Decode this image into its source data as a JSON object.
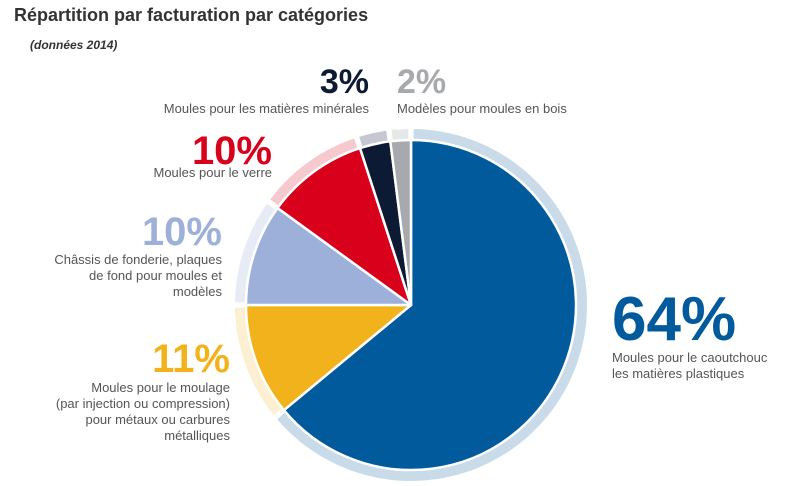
{
  "chart_data": {
    "type": "pie",
    "title": "Répartition par facturation par catégories",
    "subtitle": "(données 2014)",
    "slices": [
      {
        "percent_label": "64%",
        "value": 64,
        "color": "#005a9c",
        "ring_color": "#c9dbe9",
        "label_lines": [
          "Moules pour le caoutchouc",
          "les matières plastiques"
        ]
      },
      {
        "percent_label": "11%",
        "value": 11,
        "color": "#f2b21c",
        "ring_color": "#fcefd2",
        "label_lines": [
          "Moules pour le moulage",
          "(par injection ou compression)",
          "pour métaux ou carbures",
          "métalliques"
        ]
      },
      {
        "percent_label": "10%",
        "value": 10,
        "color": "#9cb0da",
        "ring_color": "#e6ebf5",
        "label_lines": [
          "Châssis de fonderie, plaques",
          "de fond pour moules et",
          "modèles"
        ]
      },
      {
        "percent_label": "10%",
        "value": 10,
        "color": "#d9001b",
        "ring_color": "#f6c9cf",
        "label_lines": [
          "Moules pour le verre"
        ]
      },
      {
        "percent_label": "3%",
        "value": 3,
        "color": "#0d1a33",
        "ring_color": "#c5c8d0",
        "label_lines": [
          "Moules pour les matières minérales"
        ]
      },
      {
        "percent_label": "2%",
        "value": 2,
        "color": "#a7a9ac",
        "ring_color": "#e6e7e8",
        "label_lines": [
          "Modèles pour moules en bois"
        ]
      }
    ]
  }
}
